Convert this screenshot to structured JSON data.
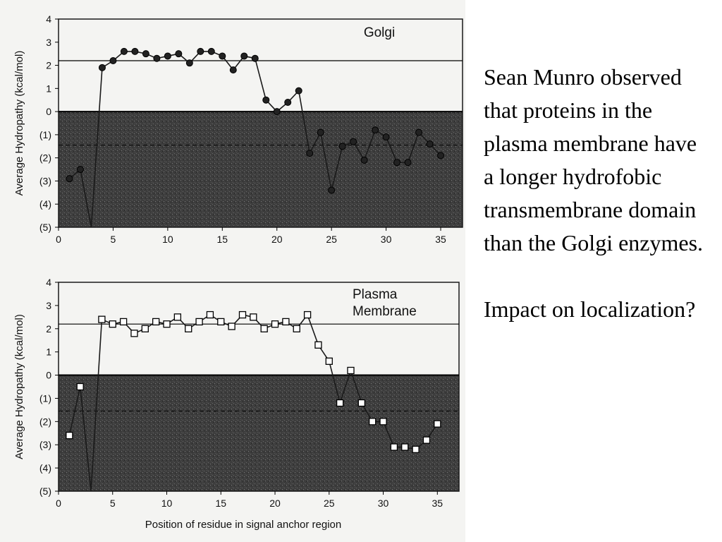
{
  "slide": {
    "body": "Sean Munro observed that proteins in the plasma membrane have a longer hydrofobic transmembrane domain than the Golgi enzymes.",
    "question": "Impact on localization?"
  },
  "colors": {
    "shading": "#3a3a3a",
    "line": "#1a1a1a",
    "golgi_marker": "#222222",
    "pm_marker": "#ffffff",
    "background": "#f4f4f2"
  },
  "chart_data": [
    {
      "type": "line",
      "title": "Golgi",
      "ylabel": "Average Hydropathy (kcal/mol)",
      "xlabel": "",
      "xlim": [
        0,
        37
      ],
      "ylim": [
        -5,
        4
      ],
      "xticks": [
        0,
        5,
        10,
        15,
        20,
        25,
        30,
        35
      ],
      "yticks": [
        4,
        3,
        2,
        1,
        0,
        -1,
        -2,
        -3,
        -4,
        -5
      ],
      "ytick_labels": [
        "4",
        "3",
        "2",
        "1",
        "0",
        "(1)",
        "(2)",
        "(3)",
        "(4)",
        "(5)"
      ],
      "reference_lines": {
        "solid": 2.2,
        "dashed": -1.45
      },
      "shaded_below": 0,
      "marker": "filled-circle",
      "series": [
        {
          "x": [
            1,
            2,
            3,
            4,
            5,
            6,
            7,
            8,
            9,
            10,
            11,
            12,
            13,
            14,
            15,
            16,
            17,
            18,
            19,
            20,
            21,
            22,
            23,
            24,
            25,
            26,
            27,
            28,
            29,
            30,
            31,
            32,
            33,
            34,
            35
          ],
          "y": [
            -2.9,
            -2.5,
            -5.0,
            1.9,
            2.2,
            2.6,
            2.6,
            2.5,
            2.3,
            2.4,
            2.5,
            2.1,
            2.6,
            2.6,
            2.4,
            1.8,
            2.4,
            2.3,
            0.5,
            0.0,
            0.4,
            0.9,
            -1.8,
            -0.9,
            -3.4,
            -1.5,
            -1.3,
            -2.1,
            -0.8,
            -1.1,
            -2.2,
            -2.2,
            -0.9,
            -1.4,
            -1.9
          ]
        }
      ]
    },
    {
      "type": "line",
      "title": "Plasma Membrane",
      "ylabel": "Average Hydropathy (kcal/mol)",
      "xlabel": "Position of residue in signal anchor region",
      "xlim": [
        0,
        37
      ],
      "ylim": [
        -5,
        4
      ],
      "xticks": [
        0,
        5,
        10,
        15,
        20,
        25,
        30,
        35
      ],
      "yticks": [
        4,
        3,
        2,
        1,
        0,
        -1,
        -2,
        -3,
        -4,
        -5
      ],
      "ytick_labels": [
        "4",
        "3",
        "2",
        "1",
        "0",
        "(1)",
        "(2)",
        "(3)",
        "(4)",
        "(5)"
      ],
      "reference_lines": {
        "solid": 2.2,
        "dashed": -1.55
      },
      "shaded_below": 0,
      "marker": "open-square",
      "series": [
        {
          "x": [
            1,
            2,
            3,
            4,
            5,
            6,
            7,
            8,
            9,
            10,
            11,
            12,
            13,
            14,
            15,
            16,
            17,
            18,
            19,
            20,
            21,
            22,
            23,
            24,
            25,
            26,
            27,
            28,
            29,
            30,
            31,
            32,
            33,
            34,
            35
          ],
          "y": [
            -2.6,
            -0.5,
            -5.0,
            2.4,
            2.2,
            2.3,
            1.8,
            2.0,
            2.3,
            2.2,
            2.5,
            2.0,
            2.3,
            2.6,
            2.3,
            2.1,
            2.6,
            2.5,
            2.0,
            2.2,
            2.3,
            2.0,
            2.6,
            1.3,
            0.6,
            -1.2,
            0.2,
            -1.2,
            -2.0,
            -2.0,
            -3.1,
            -3.1,
            -3.2,
            -2.8,
            -2.1
          ]
        }
      ]
    }
  ]
}
